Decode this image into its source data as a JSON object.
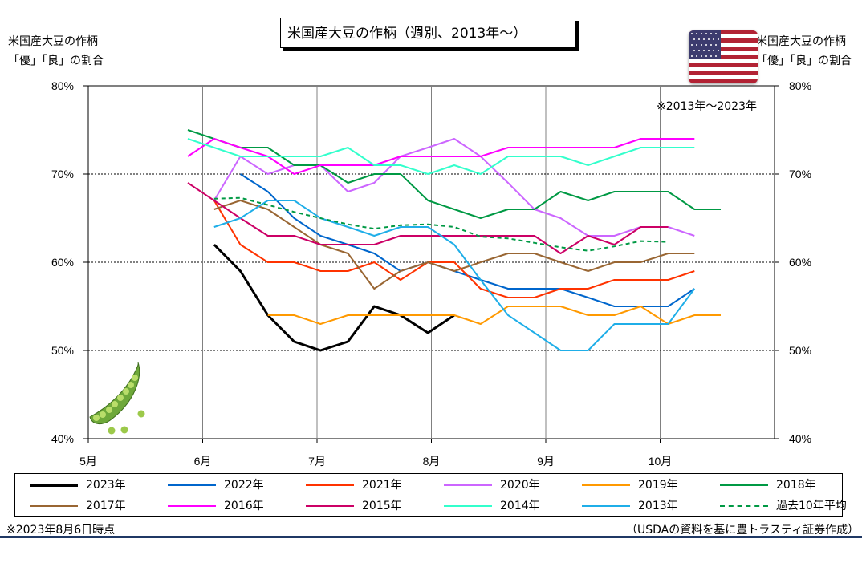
{
  "title": "米国産大豆の作柄（週別、2013年～）",
  "left_axis_title": [
    "米国産大豆の作柄",
    "「優」「良」の割合"
  ],
  "right_axis_title": [
    "米国産大豆の作柄",
    "「優」「良」の割合"
  ],
  "note_range": "※2013年～2023年",
  "note_date": "※2023年8月6日時点",
  "source": "（USDAの資料を基に豊トラスティ証券作成）",
  "flag_icon": "us-flag-icon",
  "decoration_icon": "edamame-icon",
  "chart_data": {
    "type": "line",
    "x_axis": "week (month position)",
    "x_ticks": [
      "5月",
      "6月",
      "7月",
      "8月",
      "9月",
      "10月"
    ],
    "xlim": [
      0,
      6
    ],
    "ylim": [
      40,
      80
    ],
    "y_ticks": [
      "40%",
      "50%",
      "60%",
      "70%",
      "80%"
    ],
    "grid": "vertical at months, horizontal dotted at 50/60/70",
    "legend_position": "bottom",
    "series": [
      {
        "name": "2023年",
        "color": "#000000",
        "width": 3,
        "dash": "",
        "x": [
          1.1,
          1.33,
          1.57,
          1.8,
          2.03,
          2.27,
          2.5,
          2.73,
          2.97,
          3.2
        ],
        "y": [
          62,
          59,
          54,
          51,
          50,
          51,
          55,
          54,
          52,
          54
        ]
      },
      {
        "name": "2022年",
        "color": "#0066cc",
        "width": 2,
        "dash": "",
        "x": [
          1.33,
          1.57,
          1.8,
          2.03,
          2.27,
          2.5,
          2.73,
          2.97,
          3.2,
          3.43,
          3.67,
          3.9,
          4.13,
          4.37,
          4.6,
          4.83,
          5.07,
          5.3
        ],
        "y": [
          70,
          68,
          65,
          63,
          62,
          61,
          59,
          60,
          59,
          58,
          57,
          57,
          57,
          56,
          55,
          55,
          55,
          57
        ]
      },
      {
        "name": "2021年",
        "color": "#ff3300",
        "width": 2,
        "dash": "",
        "x": [
          1.1,
          1.33,
          1.57,
          1.8,
          2.03,
          2.27,
          2.5,
          2.73,
          2.97,
          3.2,
          3.43,
          3.67,
          3.9,
          4.13,
          4.37,
          4.6,
          4.83,
          5.07,
          5.3
        ],
        "y": [
          67,
          62,
          60,
          60,
          59,
          59,
          60,
          58,
          60,
          60,
          57,
          56,
          56,
          57,
          57,
          58,
          58,
          58,
          59
        ]
      },
      {
        "name": "2020年",
        "color": "#cc66ff",
        "width": 2,
        "dash": "",
        "x": [
          1.1,
          1.33,
          1.57,
          1.8,
          2.03,
          2.27,
          2.5,
          2.73,
          2.97,
          3.2,
          3.43,
          3.67,
          3.9,
          4.13,
          4.37,
          4.6,
          4.83,
          5.07,
          5.3
        ],
        "y": [
          67,
          72,
          70,
          71,
          71,
          68,
          69,
          72,
          73,
          74,
          72,
          69,
          66,
          65,
          63,
          63,
          64,
          64,
          63
        ]
      },
      {
        "name": "2019年",
        "color": "#ff9900",
        "width": 2,
        "dash": "",
        "x": [
          1.57,
          1.8,
          2.03,
          2.27,
          2.5,
          2.73,
          2.97,
          3.2,
          3.43,
          3.67,
          3.9,
          4.13,
          4.37,
          4.6,
          4.83,
          5.07,
          5.3,
          5.53
        ],
        "y": [
          54,
          54,
          53,
          54,
          54,
          54,
          54,
          54,
          53,
          55,
          55,
          55,
          54,
          54,
          55,
          53,
          54,
          54
        ]
      },
      {
        "name": "2018年",
        "color": "#009944",
        "width": 2,
        "dash": "",
        "x": [
          0.87,
          1.1,
          1.33,
          1.57,
          1.8,
          2.03,
          2.27,
          2.5,
          2.73,
          2.97,
          3.2,
          3.43,
          3.67,
          3.9,
          4.13,
          4.37,
          4.6,
          4.83,
          5.07,
          5.3,
          5.53
        ],
        "y": [
          75,
          74,
          73,
          73,
          71,
          71,
          69,
          70,
          70,
          67,
          66,
          65,
          66,
          66,
          68,
          67,
          68,
          68,
          68,
          66,
          66
        ]
      },
      {
        "name": "2017年",
        "color": "#996633",
        "width": 2,
        "dash": "",
        "x": [
          1.1,
          1.33,
          1.57,
          1.8,
          2.03,
          2.27,
          2.5,
          2.73,
          2.97,
          3.2,
          3.43,
          3.67,
          3.9,
          4.13,
          4.37,
          4.6,
          4.83,
          5.07,
          5.3
        ],
        "y": [
          66,
          67,
          66,
          64,
          62,
          61,
          57,
          59,
          60,
          59,
          60,
          61,
          61,
          60,
          59,
          60,
          60,
          61,
          61
        ]
      },
      {
        "name": "2016年",
        "color": "#ff00ff",
        "width": 2,
        "dash": "",
        "x": [
          0.87,
          1.1,
          1.33,
          1.57,
          1.8,
          2.03,
          2.27,
          2.5,
          2.73,
          2.97,
          3.2,
          3.43,
          3.67,
          3.9,
          4.13,
          4.37,
          4.6,
          4.83,
          5.07,
          5.3
        ],
        "y": [
          72,
          74,
          73,
          72,
          70,
          71,
          71,
          71,
          72,
          72,
          72,
          72,
          73,
          73,
          73,
          73,
          73,
          74,
          74,
          74
        ]
      },
      {
        "name": "2015年",
        "color": "#cc0066",
        "width": 2,
        "dash": "",
        "x": [
          0.87,
          1.1,
          1.33,
          1.57,
          1.8,
          2.03,
          2.27,
          2.5,
          2.73,
          2.97,
          3.2,
          3.43,
          3.67,
          3.9,
          4.13,
          4.37,
          4.6,
          4.83,
          5.07
        ],
        "y": [
          69,
          67,
          65,
          63,
          63,
          62,
          62,
          62,
          63,
          63,
          63,
          63,
          63,
          63,
          61,
          63,
          62,
          64,
          64
        ]
      },
      {
        "name": "2014年",
        "color": "#33ffcc",
        "width": 2,
        "dash": "",
        "x": [
          0.87,
          1.1,
          1.33,
          1.57,
          1.8,
          2.03,
          2.27,
          2.5,
          2.73,
          2.97,
          3.2,
          3.43,
          3.67,
          3.9,
          4.13,
          4.37,
          4.6,
          4.83,
          5.07,
          5.3
        ],
        "y": [
          74,
          73,
          72,
          72,
          72,
          72,
          73,
          71,
          71,
          70,
          71,
          70,
          72,
          72,
          72,
          71,
          72,
          73,
          73,
          73
        ]
      },
      {
        "name": "2013年",
        "color": "#1faee8",
        "width": 2,
        "dash": "",
        "x": [
          1.1,
          1.33,
          1.57,
          1.8,
          2.03,
          2.27,
          2.5,
          2.73,
          2.97,
          3.2,
          3.43,
          3.67,
          3.9,
          4.13,
          4.37,
          4.6,
          4.83,
          5.07,
          5.3
        ],
        "y": [
          64,
          65,
          67,
          67,
          65,
          64,
          63,
          64,
          64,
          62,
          58,
          54,
          52,
          50,
          50,
          53,
          53,
          53,
          57
        ]
      },
      {
        "name": "過去10年平均",
        "color": "#009944",
        "width": 2,
        "dash": "5,4",
        "x": [
          1.1,
          1.33,
          1.57,
          1.8,
          2.03,
          2.27,
          2.5,
          2.73,
          2.97,
          3.2,
          3.43,
          3.67,
          3.9,
          4.13,
          4.37,
          4.6,
          4.83,
          5.07
        ],
        "y": [
          67.2,
          67.3,
          66.5,
          65.7,
          65.0,
          64.3,
          63.8,
          64.2,
          64.3,
          64.0,
          62.9,
          62.7,
          62.2,
          61.7,
          61.3,
          61.8,
          62.4,
          62.3
        ]
      }
    ]
  }
}
